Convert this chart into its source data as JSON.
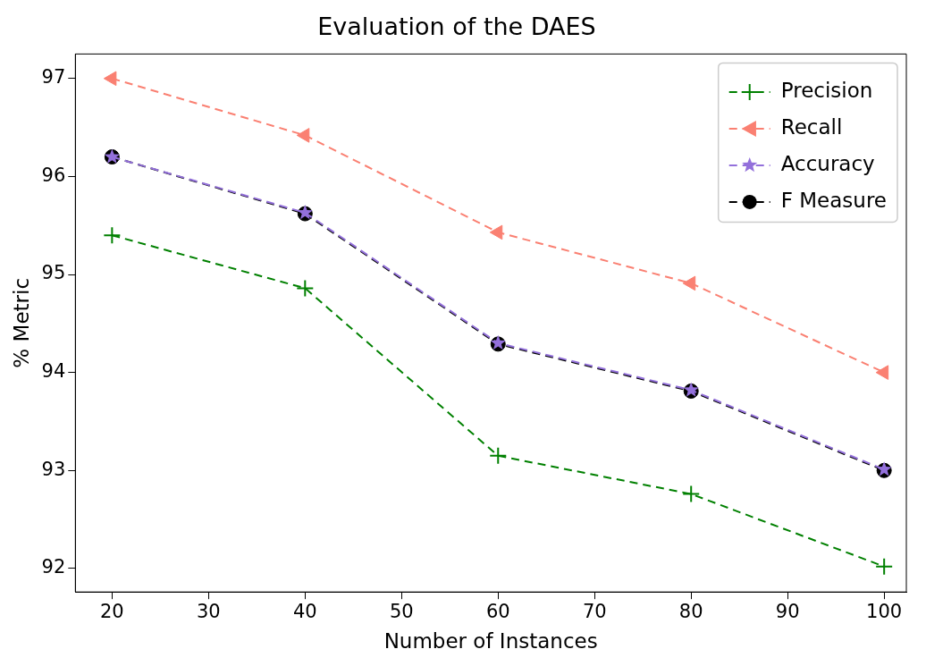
{
  "chart_data": {
    "type": "line",
    "title": "Evaluation of the DAES",
    "xlabel": "Number of Instances",
    "ylabel": "% Metric",
    "x": [
      20,
      40,
      60,
      80,
      100
    ],
    "series": [
      {
        "name": "Precision",
        "color": "#008000",
        "marker": "cross",
        "values": [
          95.4,
          94.86,
          93.15,
          92.76,
          92.02
        ]
      },
      {
        "name": "Recall",
        "color": "#fa8072",
        "marker": "triangle",
        "values": [
          97.0,
          96.42,
          95.43,
          94.91,
          94.0
        ]
      },
      {
        "name": "Accuracy",
        "color": "#9370db",
        "marker": "star",
        "values": [
          96.2,
          95.63,
          94.3,
          93.82,
          93.01
        ]
      },
      {
        "name": "F Measure",
        "color": "#000000",
        "marker": "circle",
        "values": [
          96.2,
          95.62,
          94.29,
          93.81,
          93.0
        ]
      }
    ],
    "xlim": [
      16.2,
      102.3
    ],
    "ylim": [
      91.76,
      97.25
    ],
    "xticks": [
      20,
      30,
      40,
      50,
      60,
      70,
      80,
      90,
      100
    ],
    "yticks": [
      92,
      93,
      94,
      95,
      96,
      97
    ],
    "grid": false,
    "legend": "top right",
    "line_style": "dashed"
  }
}
